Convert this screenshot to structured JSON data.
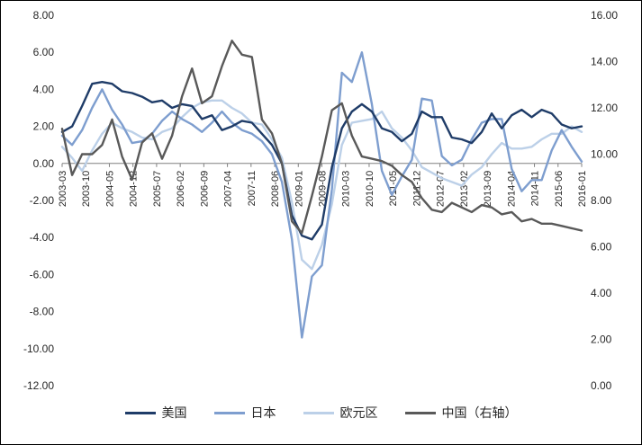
{
  "page": {
    "background": "#ffffff",
    "border_color": "#000000"
  },
  "chart_data": {
    "type": "line",
    "title": "",
    "x_unit": "quarterly, 2003Q1 to 2016Q1 (YoY real GDP growth, %)",
    "x_tick_labels": [
      "2003-03",
      "2003-10",
      "2004-05",
      "2004-12",
      "2005-07",
      "2006-02",
      "2006-09",
      "2007-04",
      "2007-11",
      "2008-06",
      "2009-01",
      "2009-08",
      "2010-03",
      "2010-10",
      "2011-05",
      "2011-12",
      "2012-07",
      "2013-02",
      "2013-09",
      "2014-04",
      "2014-11",
      "2015-06",
      "2016-01"
    ],
    "axes": {
      "left": {
        "min": -12,
        "max": 8,
        "step": 2,
        "tick_labels": [
          "8.00",
          "6.00",
          "4.00",
          "2.00",
          "0.00",
          "-2.00",
          "-4.00",
          "-6.00",
          "-8.00",
          "-10.00",
          "-12.00"
        ]
      },
      "right": {
        "min": 0,
        "max": 16,
        "step": 2,
        "tick_labels": [
          "16.00",
          "14.00",
          "12.00",
          "10.00",
          "8.00",
          "6.00",
          "4.00",
          "2.00",
          "0.00"
        ]
      }
    },
    "grid": "off",
    "legend_position": "bottom",
    "series": [
      {
        "id": "us",
        "name": "美国",
        "axis": "left",
        "color": "#1f3c68",
        "values": [
          1.7,
          2.0,
          3.1,
          4.3,
          4.4,
          4.3,
          3.9,
          3.8,
          3.6,
          3.3,
          3.4,
          3.0,
          3.2,
          3.1,
          2.4,
          2.6,
          1.8,
          2.0,
          2.3,
          2.2,
          1.6,
          1.0,
          0.0,
          -2.8,
          -3.9,
          -4.1,
          -3.3,
          -0.2,
          1.9,
          2.8,
          3.2,
          2.8,
          1.9,
          1.7,
          1.2,
          1.6,
          2.8,
          2.5,
          2.5,
          1.4,
          1.3,
          1.1,
          1.7,
          2.7,
          1.9,
          2.6,
          2.9,
          2.5,
          2.9,
          2.7,
          2.1,
          1.9,
          2.0
        ]
      },
      {
        "id": "japan",
        "name": "日本",
        "axis": "left",
        "color": "#7e9ecf",
        "values": [
          1.5,
          1.0,
          1.8,
          3.0,
          4.0,
          2.9,
          2.1,
          1.1,
          1.2,
          1.6,
          2.3,
          2.8,
          2.4,
          2.1,
          1.7,
          2.2,
          2.8,
          2.2,
          1.8,
          1.6,
          1.2,
          0.5,
          -1.0,
          -4.1,
          -9.4,
          -6.1,
          -5.5,
          -1.4,
          4.9,
          4.4,
          6.0,
          3.2,
          -0.4,
          -1.7,
          -0.7,
          0.2,
          3.5,
          3.4,
          0.4,
          -0.1,
          0.2,
          1.3,
          2.2,
          2.4,
          2.4,
          -0.3,
          -1.5,
          -0.9,
          -0.9,
          0.7,
          1.8,
          0.9,
          0.1
        ]
      },
      {
        "id": "eurozone",
        "name": "欧元区",
        "axis": "left",
        "color": "#bcd0e8",
        "values": [
          0.9,
          0.3,
          -0.4,
          0.7,
          1.6,
          2.2,
          1.9,
          1.7,
          1.4,
          1.3,
          1.7,
          1.9,
          2.5,
          3.0,
          3.3,
          3.4,
          3.4,
          3.0,
          2.7,
          2.2,
          2.1,
          1.3,
          0.3,
          -2.1,
          -5.2,
          -5.7,
          -4.4,
          -2.2,
          1.0,
          2.2,
          2.3,
          2.4,
          2.8,
          1.9,
          1.4,
          0.7,
          -0.2,
          -0.5,
          -0.8,
          -1.0,
          -1.2,
          -0.6,
          -0.2,
          0.5,
          1.1,
          0.8,
          0.8,
          0.9,
          1.3,
          1.6,
          1.6,
          2.0,
          1.7
        ]
      },
      {
        "id": "china",
        "name": "中国（右轴）",
        "axis": "right",
        "color": "#595959",
        "values": [
          11.1,
          9.1,
          10.0,
          10.0,
          10.4,
          11.5,
          9.9,
          8.9,
          10.5,
          10.9,
          9.8,
          10.8,
          12.5,
          13.7,
          12.2,
          12.5,
          13.8,
          14.9,
          14.3,
          14.2,
          11.5,
          10.9,
          9.6,
          7.1,
          6.6,
          8.2,
          9.9,
          11.9,
          12.2,
          10.8,
          9.9,
          9.8,
          9.7,
          9.5,
          9.1,
          8.8,
          8.1,
          7.6,
          7.5,
          7.9,
          7.7,
          7.5,
          7.8,
          7.7,
          7.4,
          7.5,
          7.1,
          7.2,
          7.0,
          7.0,
          6.9,
          6.8,
          6.7
        ]
      }
    ],
    "style": {
      "axis_line_color": "#808080",
      "tick_text_color": "#262626",
      "line_width": 2.4
    }
  }
}
